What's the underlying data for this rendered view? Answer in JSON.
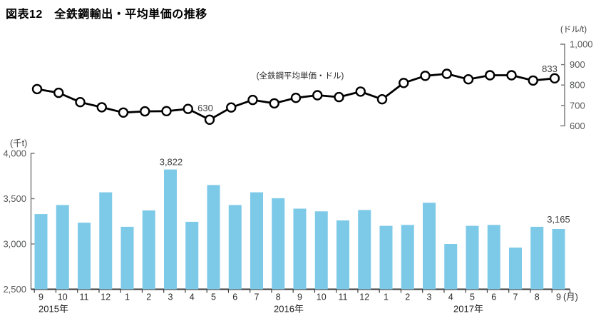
{
  "title": "図表12　全鉄鋼輸出・平均単価の推移",
  "line_chart": {
    "unit_label": "(ドル/t)",
    "annotation": "(全鉄鋼平均単価・ドル)",
    "axis_ticks": [
      "1,000",
      "900",
      "800",
      "700",
      "600"
    ]
  },
  "bar_chart": {
    "unit_label": "(千t)",
    "axis_ticks": [
      "4,000",
      "3,500",
      "3,000",
      "2,500"
    ]
  },
  "x_axis": {
    "month_labels": [
      "9",
      "10",
      "11",
      "12",
      "1",
      "2",
      "3",
      "4",
      "5",
      "6",
      "7",
      "8",
      "9",
      "10",
      "11",
      "12",
      "1",
      "2",
      "3",
      "4",
      "5",
      "6",
      "7",
      "8",
      "9"
    ],
    "unit_label": "(月)",
    "year_labels": [
      "2015年",
      "2016年",
      "2017年"
    ]
  },
  "annotations": [
    {
      "series": "line",
      "index": 8,
      "value": 630,
      "text": "630"
    },
    {
      "series": "line",
      "index": 24,
      "value": 833,
      "text": "833"
    },
    {
      "series": "bar",
      "index": 6,
      "value": 3822,
      "text": "3,822"
    },
    {
      "series": "bar",
      "index": 24,
      "value": 3165,
      "text": "3,165"
    }
  ],
  "chart_data": [
    {
      "type": "line",
      "name": "全鉄鋼平均単価（ドル/t）",
      "x": [
        "2015-09",
        "2015-10",
        "2015-11",
        "2015-12",
        "2016-01",
        "2016-02",
        "2016-03",
        "2016-04",
        "2016-05",
        "2016-06",
        "2016-07",
        "2016-08",
        "2016-09",
        "2016-10",
        "2016-11",
        "2016-12",
        "2017-01",
        "2017-02",
        "2017-03",
        "2017-04",
        "2017-05",
        "2017-06",
        "2017-07",
        "2017-08",
        "2017-09"
      ],
      "values": [
        780,
        762,
        716,
        691,
        665,
        671,
        672,
        683,
        630,
        690,
        727,
        710,
        737,
        750,
        741,
        768,
        730,
        810,
        845,
        855,
        828,
        848,
        848,
        822,
        833
      ],
      "ylim": [
        600,
        1000
      ],
      "axis": "right",
      "labeled_points": {
        "2016-05": 630,
        "2017-09": 833
      },
      "marker": "open-circle",
      "legend_position": "none",
      "grid": false
    },
    {
      "type": "bar",
      "name": "全鉄鋼輸出（千t）",
      "x": [
        "2015-09",
        "2015-10",
        "2015-11",
        "2015-12",
        "2016-01",
        "2016-02",
        "2016-03",
        "2016-04",
        "2016-05",
        "2016-06",
        "2016-07",
        "2016-08",
        "2016-09",
        "2016-10",
        "2016-11",
        "2016-12",
        "2017-01",
        "2017-02",
        "2017-03",
        "2017-04",
        "2017-05",
        "2017-06",
        "2017-07",
        "2017-08",
        "2017-09"
      ],
      "values": [
        3330,
        3430,
        3235,
        3570,
        3190,
        3370,
        3822,
        3245,
        3650,
        3430,
        3570,
        3505,
        3390,
        3360,
        3260,
        3375,
        3200,
        3210,
        3455,
        3000,
        3200,
        3210,
        2960,
        3190,
        3165
      ],
      "ylim": [
        2500,
        4000
      ],
      "axis": "left",
      "labeled_points": {
        "2016-03": 3822,
        "2017-09": 3165
      },
      "legend_position": "none",
      "grid": false
    }
  ],
  "colors": {
    "bar_fill": "#7dc9e8",
    "line_stroke": "#000000",
    "marker_fill": "#ffffff",
    "axis_gray": "#767676",
    "axis_dark": "#3a3a3a",
    "tick_text": "#58595b"
  }
}
